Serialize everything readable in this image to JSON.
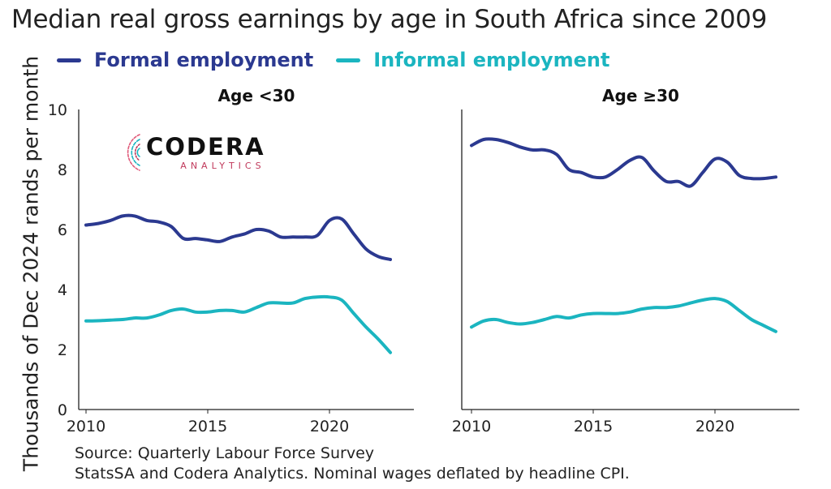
{
  "title": "Median real gross earnings by age in South Africa since 2009",
  "source_lines": [
    "Source: Quarterly Labour Force Survey",
    "StatsSA and Codera Analytics. Nominal wages deflated by headline CPI."
  ],
  "logo": {
    "name": "CODERA",
    "sub": "ANALYTICS"
  },
  "colors": {
    "formal": "#2b3990",
    "informal": "#1bb5c0",
    "axis": "#222222"
  },
  "chart_data": {
    "type": "line",
    "ylabel": "Thousands of Dec 2024 rands per month",
    "ylim": [
      0,
      10
    ],
    "yticks": [
      0,
      2,
      4,
      6,
      8,
      10
    ],
    "xlim": [
      2009.8,
      2023.3
    ],
    "xticks": [
      2010,
      2015,
      2020
    ],
    "grid": false,
    "legend_position": "top",
    "series_names": [
      "Formal employment",
      "Informal employment"
    ],
    "panels": [
      {
        "title": "Age <30",
        "series": [
          {
            "name": "Formal employment",
            "x": [
              2010,
              2010.5,
              2011,
              2011.5,
              2012,
              2012.5,
              2013,
              2013.5,
              2014,
              2014.5,
              2015,
              2015.5,
              2016,
              2016.5,
              2017,
              2017.5,
              2018,
              2018.5,
              2019,
              2019.5,
              2020,
              2020.5,
              2021,
              2021.5,
              2022,
              2022.5
            ],
            "values": [
              6.15,
              6.2,
              6.3,
              6.45,
              6.45,
              6.3,
              6.25,
              6.1,
              5.7,
              5.7,
              5.65,
              5.6,
              5.75,
              5.85,
              6.0,
              5.95,
              5.75,
              5.75,
              5.75,
              5.8,
              6.3,
              6.35,
              5.85,
              5.35,
              5.1,
              5.0
            ]
          },
          {
            "name": "Informal employment",
            "x": [
              2010,
              2010.5,
              2011,
              2011.5,
              2012,
              2012.5,
              2013,
              2013.5,
              2014,
              2014.5,
              2015,
              2015.5,
              2016,
              2016.5,
              2017,
              2017.5,
              2018,
              2018.5,
              2019,
              2019.5,
              2020,
              2020.5,
              2021,
              2021.5,
              2022,
              2022.5
            ],
            "values": [
              2.95,
              2.96,
              2.98,
              3.0,
              3.05,
              3.05,
              3.15,
              3.3,
              3.35,
              3.25,
              3.25,
              3.3,
              3.3,
              3.25,
              3.4,
              3.55,
              3.55,
              3.55,
              3.7,
              3.75,
              3.75,
              3.65,
              3.2,
              2.75,
              2.35,
              1.9
            ]
          }
        ]
      },
      {
        "title": "Age ≥30",
        "series": [
          {
            "name": "Formal employment",
            "x": [
              2010,
              2010.5,
              2011,
              2011.5,
              2012,
              2012.5,
              2013,
              2013.5,
              2014,
              2014.5,
              2015,
              2015.5,
              2016,
              2016.5,
              2017,
              2017.5,
              2018,
              2018.5,
              2019,
              2019.5,
              2020,
              2020.5,
              2021,
              2021.5,
              2022,
              2022.5
            ],
            "values": [
              8.8,
              9.0,
              9.0,
              8.9,
              8.75,
              8.65,
              8.65,
              8.5,
              8.0,
              7.9,
              7.75,
              7.75,
              8.0,
              8.3,
              8.4,
              7.95,
              7.6,
              7.6,
              7.45,
              7.9,
              8.35,
              8.25,
              7.8,
              7.7,
              7.7,
              7.75
            ]
          },
          {
            "name": "Informal employment",
            "x": [
              2010,
              2010.5,
              2011,
              2011.5,
              2012,
              2012.5,
              2013,
              2013.5,
              2014,
              2014.5,
              2015,
              2015.5,
              2016,
              2016.5,
              2017,
              2017.5,
              2018,
              2018.5,
              2019,
              2019.5,
              2020,
              2020.5,
              2021,
              2021.5,
              2022,
              2022.5
            ],
            "values": [
              2.75,
              2.95,
              3.0,
              2.9,
              2.85,
              2.9,
              3.0,
              3.1,
              3.05,
              3.15,
              3.2,
              3.2,
              3.2,
              3.25,
              3.35,
              3.4,
              3.4,
              3.45,
              3.55,
              3.65,
              3.7,
              3.6,
              3.3,
              3.0,
              2.8,
              2.6
            ]
          }
        ]
      }
    ]
  }
}
